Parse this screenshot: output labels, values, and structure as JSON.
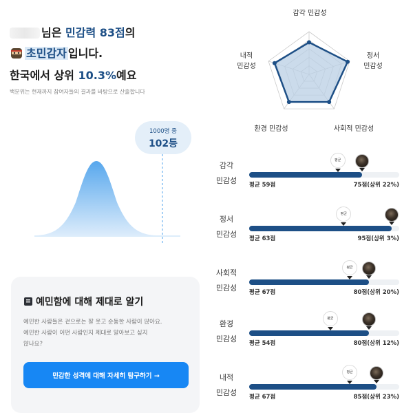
{
  "result": {
    "line1_suffix": "님은 ",
    "line1_accent": "민감력 83점",
    "line1_end": "의",
    "type_name": "초민감자",
    "type_suffix": "입니다.",
    "line3_prefix": "한국에서 상위 ",
    "line3_accent": "10.3%",
    "line3_suffix": "예요",
    "note": "백분위는 현재까지 참여자들의 결과를 바탕으로 산출합니다"
  },
  "rank": {
    "total_label": "1000명 중",
    "rank_label": "102등"
  },
  "card": {
    "title": "예민함에 대해 제대로 알기",
    "body_line1": "예민한 사람들은 겉으로는 잘 웃고 순둥한 사람이 많아요.",
    "body_line2": "예민한 사람이 어떤 사람인지 제대로 알아보고 싶지",
    "body_line3": "않나요?",
    "cta_label": "민감한 성격에 대해 자세히 탐구하기 →"
  },
  "radar": {
    "labels": {
      "sensory": "감각 민감성",
      "emotional_1": "정서",
      "emotional_2": "민감성",
      "social": "사회적 민감성",
      "environmental": "환경 민감성",
      "internal_1": "내적",
      "internal_2": "민감성"
    },
    "values": [
      75,
      95,
      80,
      80,
      85
    ],
    "max": 100
  },
  "bars": [
    {
      "label_1": "감각",
      "label_2": "민감성",
      "avg_marker": "평균",
      "avg_text": "평균 59점",
      "avg": 59,
      "score": 75,
      "score_text": "75점(상위 22%)"
    },
    {
      "label_1": "정서",
      "label_2": "민감성",
      "avg_marker": "평균",
      "avg_text": "평균 63점",
      "avg": 63,
      "score": 95,
      "score_text": "95점(상위 3%)"
    },
    {
      "label_1": "사회적",
      "label_2": "민감성",
      "avg_marker": "평균",
      "avg_text": "평균 67점",
      "avg": 67,
      "score": 80,
      "score_text": "80점(상위 20%)"
    },
    {
      "label_1": "환경",
      "label_2": "민감성",
      "avg_marker": "평균",
      "avg_text": "평균 54점",
      "avg": 54,
      "score": 80,
      "score_text": "80점(상위 12%)"
    },
    {
      "label_1": "내적",
      "label_2": "민감성",
      "avg_marker": "평균",
      "avg_text": "평균 67점",
      "avg": 67,
      "score": 85,
      "score_text": "85점(상위 23%)"
    }
  ],
  "colors": {
    "primary": "#1d4f86",
    "accent_blue": "#1787f4",
    "curve": "#4fa3ec"
  }
}
